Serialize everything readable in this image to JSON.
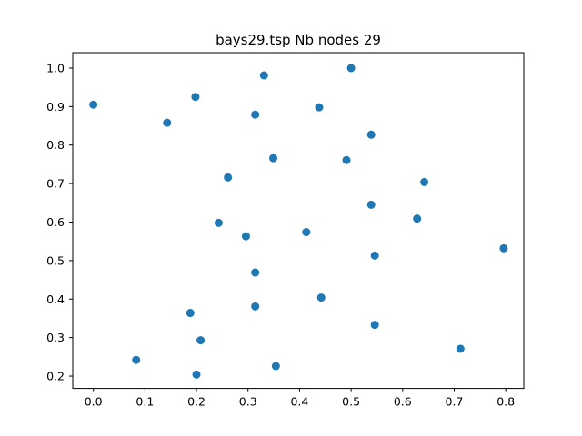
{
  "chart_data": {
    "type": "scatter",
    "title": "bays29.tsp Nb nodes 29",
    "xlabel": "",
    "ylabel": "",
    "xlim": [
      -0.04,
      0.835
    ],
    "ylim": [
      0.168,
      1.04
    ],
    "xticks": [
      0.0,
      0.1,
      0.2,
      0.3,
      0.4,
      0.5,
      0.6,
      0.7,
      0.8
    ],
    "xtick_labels": [
      "0.0",
      "0.1",
      "0.2",
      "0.3",
      "0.4",
      "0.5",
      "0.6",
      "0.7",
      "0.8"
    ],
    "yticks": [
      0.2,
      0.3,
      0.4,
      0.5,
      0.6,
      0.7,
      0.8,
      0.9,
      1.0
    ],
    "ytick_labels": [
      "0.2",
      "0.3",
      "0.4",
      "0.5",
      "0.6",
      "0.7",
      "0.8",
      "0.9",
      "1.0"
    ],
    "grid": false,
    "color": "#1f77b4",
    "points": [
      {
        "x": 0.0,
        "y": 0.905
      },
      {
        "x": 0.083,
        "y": 0.242
      },
      {
        "x": 0.143,
        "y": 0.858
      },
      {
        "x": 0.188,
        "y": 0.364
      },
      {
        "x": 0.198,
        "y": 0.925
      },
      {
        "x": 0.2,
        "y": 0.204
      },
      {
        "x": 0.208,
        "y": 0.293
      },
      {
        "x": 0.243,
        "y": 0.598
      },
      {
        "x": 0.261,
        "y": 0.716
      },
      {
        "x": 0.296,
        "y": 0.563
      },
      {
        "x": 0.314,
        "y": 0.879
      },
      {
        "x": 0.314,
        "y": 0.469
      },
      {
        "x": 0.314,
        "y": 0.381
      },
      {
        "x": 0.331,
        "y": 0.981
      },
      {
        "x": 0.349,
        "y": 0.766
      },
      {
        "x": 0.354,
        "y": 0.226
      },
      {
        "x": 0.413,
        "y": 0.574
      },
      {
        "x": 0.438,
        "y": 0.898
      },
      {
        "x": 0.442,
        "y": 0.404
      },
      {
        "x": 0.491,
        "y": 0.761
      },
      {
        "x": 0.5,
        "y": 1.0
      },
      {
        "x": 0.539,
        "y": 0.827
      },
      {
        "x": 0.539,
        "y": 0.645
      },
      {
        "x": 0.546,
        "y": 0.513
      },
      {
        "x": 0.546,
        "y": 0.333
      },
      {
        "x": 0.628,
        "y": 0.609
      },
      {
        "x": 0.642,
        "y": 0.704
      },
      {
        "x": 0.712,
        "y": 0.271
      },
      {
        "x": 0.796,
        "y": 0.532
      }
    ]
  }
}
